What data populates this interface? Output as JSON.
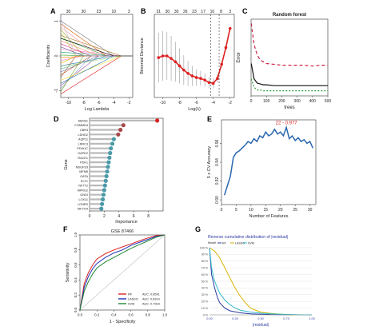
{
  "panel_letters": [
    "A",
    "B",
    "C",
    "D",
    "E",
    "F",
    "G"
  ],
  "chart_data": [
    {
      "panel": "A",
      "type": "line",
      "xlabel": "Log Lambda",
      "ylabel": "Coefficients",
      "xlim": [
        -11,
        -1.5
      ],
      "ylim": [
        -1.2,
        1.2
      ],
      "x_ticks": [
        "-10",
        "-8",
        "-6",
        "-4",
        "-2"
      ],
      "y_ticks": [
        "-1",
        "0",
        "1"
      ],
      "top_ticks": [
        "30",
        "30",
        "23",
        "10",
        "3"
      ],
      "x_ticks_values": [
        -10,
        -8,
        -6,
        -4,
        -2
      ],
      "y_ticks_values": [
        -1,
        0,
        1
      ],
      "num_paths": 30
    },
    {
      "panel": "B",
      "type": "line",
      "xlabel": "Log(λ)",
      "ylabel": "Binomial Deviance",
      "xlim": [
        -11,
        -1.5
      ],
      "ylim": [
        0.45,
        1.45
      ],
      "x_ticks": [
        "-10",
        "-8",
        "-6",
        "-4",
        "-2"
      ],
      "top_ticks": [
        "31",
        "30",
        "30",
        "26",
        "23",
        "17",
        "10",
        "8",
        "3"
      ],
      "x_ticks_values": [
        -10,
        -8,
        -6,
        -4,
        -2
      ],
      "vlines": [
        -4.3,
        -3.3
      ],
      "x": [
        -10.5,
        -10,
        -9.5,
        -9,
        -8.5,
        -8,
        -7.5,
        -7,
        -6.5,
        -6,
        -5.5,
        -5,
        -4.5,
        -4,
        -3.5,
        -3,
        -2.5,
        -2
      ],
      "y": [
        0.93,
        0.95,
        0.95,
        0.92,
        0.88,
        0.83,
        0.78,
        0.74,
        0.71,
        0.69,
        0.68,
        0.66,
        0.63,
        0.62,
        0.68,
        0.85,
        1.05,
        1.28
      ],
      "err": [
        0.3,
        0.3,
        0.29,
        0.27,
        0.24,
        0.21,
        0.18,
        0.15,
        0.12,
        0.1,
        0.09,
        0.08,
        0.07,
        0.06,
        0.05,
        0.04,
        0.03,
        0.02
      ]
    },
    {
      "panel": "C",
      "type": "line",
      "title": "Random forest",
      "xlabel": "trees",
      "ylabel": "Error",
      "xlim": [
        0,
        500
      ],
      "ylim": [
        0,
        0.9
      ],
      "x_ticks": [
        "0",
        "100",
        "200",
        "300",
        "400",
        "500"
      ],
      "x_ticks_values": [
        0,
        100,
        200,
        300,
        400,
        500
      ],
      "series": [
        {
          "x": [
            1,
            20,
            40,
            60,
            80,
            100,
            150,
            200,
            250,
            300,
            350,
            400,
            450,
            500
          ],
          "y": [
            0.85,
            0.6,
            0.48,
            0.42,
            0.4,
            0.38,
            0.37,
            0.36,
            0.36,
            0.36,
            0.36,
            0.35,
            0.36,
            0.36
          ],
          "color": "#cc2244",
          "dash": "4,3"
        },
        {
          "x": [
            1,
            20,
            40,
            60,
            80,
            100,
            150,
            200,
            250,
            300,
            350,
            400,
            450,
            500
          ],
          "y": [
            0.38,
            0.2,
            0.15,
            0.14,
            0.13,
            0.13,
            0.12,
            0.12,
            0.12,
            0.12,
            0.12,
            0.12,
            0.12,
            0.12
          ],
          "color": "#111111",
          "dash": ""
        },
        {
          "x": [
            1,
            20,
            40,
            60,
            80,
            100,
            150,
            200,
            250,
            300,
            350,
            400,
            450,
            500
          ],
          "y": [
            0.2,
            0.1,
            0.07,
            0.07,
            0.06,
            0.06,
            0.06,
            0.06,
            0.06,
            0.06,
            0.06,
            0.06,
            0.06,
            0.06
          ],
          "color": "#2e9e3c",
          "dash": "2,2"
        }
      ]
    },
    {
      "panel": "D",
      "type": "bar",
      "xlabel": "Importance",
      "ylabel": "Gene",
      "xlim": [
        0,
        10
      ],
      "x_ticks": [
        "0",
        "2",
        "4",
        "6",
        "8"
      ],
      "x_ticks_values": [
        0,
        2,
        4,
        6,
        8
      ],
      "categories": [
        "ABCB1",
        "COMMD4",
        "CBR3",
        "LDHD2",
        "AQP11",
        "LRRC3",
        "PDIA1C",
        "GAPD2",
        "RACE1",
        "PDK1",
        "NDUFS3",
        "MFNB",
        "GATA",
        "ELF1",
        "NFTT2",
        "MFRG2",
        "GNGI",
        "LOX11",
        "LONRS",
        "MFYG4"
      ],
      "values": [
        9.2,
        4.6,
        4.2,
        3.9,
        3.3,
        3.1,
        2.9,
        2.8,
        2.7,
        2.6,
        2.5,
        2.4,
        2.3,
        2.2,
        2.1,
        2.0,
        1.9,
        1.8,
        1.7,
        1.6
      ]
    },
    {
      "panel": "E",
      "type": "line",
      "xlabel": "Number of Features",
      "ylabel": "5 x CV Accuracy",
      "annotation": "22 - 0.977",
      "xlim": [
        0,
        32
      ],
      "ylim": [
        0.895,
        0.985
      ],
      "x_ticks": [
        "0",
        "5",
        "10",
        "15",
        "20",
        "25",
        "30"
      ],
      "y_ticks": [
        "0.90",
        "0.92",
        "0.94",
        "0.96"
      ],
      "x_ticks_values": [
        0,
        5,
        10,
        15,
        20,
        25,
        30
      ],
      "y_ticks_values": [
        0.9,
        0.92,
        0.94,
        0.96
      ],
      "x": [
        1,
        2,
        3,
        4,
        5,
        6,
        7,
        8,
        9,
        10,
        11,
        12,
        13,
        14,
        15,
        16,
        17,
        18,
        19,
        20,
        21,
        22,
        23,
        24,
        25,
        26,
        27,
        28,
        29,
        30,
        31
      ],
      "y": [
        0.905,
        0.915,
        0.925,
        0.945,
        0.95,
        0.952,
        0.955,
        0.958,
        0.962,
        0.96,
        0.965,
        0.962,
        0.968,
        0.966,
        0.972,
        0.968,
        0.97,
        0.975,
        0.97,
        0.972,
        0.968,
        0.977,
        0.965,
        0.968,
        0.963,
        0.966,
        0.962,
        0.964,
        0.96,
        0.962,
        0.955
      ]
    },
    {
      "panel": "F",
      "type": "line",
      "title": "GSE 87466",
      "xlabel": "1 - Specificity",
      "ylabel": "Sensitivity",
      "xlim": [
        0,
        1
      ],
      "ylim": [
        0,
        1
      ],
      "x_ticks": [
        "0.0",
        "0.2",
        "0.4",
        "0.6",
        "0.8",
        "1.0"
      ],
      "y_ticks": [
        "0.0",
        "0.2",
        "0.4",
        "0.6",
        "0.8",
        "1.0"
      ],
      "x_ticks_values": [
        0,
        0.2,
        0.4,
        0.6,
        0.8,
        1.0
      ],
      "y_ticks_values": [
        0,
        0.2,
        0.4,
        0.6,
        0.8,
        1.0
      ],
      "series": [
        {
          "name": "RF",
          "auc_label": "AUC: 0.8591",
          "color": "#dd2222",
          "x": [
            0,
            0.05,
            0.1,
            0.15,
            0.2,
            0.3,
            0.4,
            0.5,
            0.6,
            0.7,
            0.8,
            0.9,
            1.0
          ],
          "y": [
            0,
            0.35,
            0.5,
            0.6,
            0.68,
            0.75,
            0.8,
            0.84,
            0.88,
            0.92,
            0.96,
            0.99,
            1.0
          ]
        },
        {
          "name": "LASSO",
          "auc_label": "AUC: 0.8314",
          "color": "#2233bb",
          "x": [
            0,
            0.05,
            0.1,
            0.15,
            0.2,
            0.3,
            0.4,
            0.5,
            0.6,
            0.7,
            0.8,
            0.9,
            1.0
          ],
          "y": [
            0,
            0.3,
            0.45,
            0.55,
            0.62,
            0.7,
            0.76,
            0.8,
            0.86,
            0.9,
            0.94,
            0.98,
            1.0
          ]
        },
        {
          "name": "SVM",
          "auc_label": "AUC: 0.7903",
          "color": "#228833",
          "x": [
            0,
            0.05,
            0.1,
            0.15,
            0.2,
            0.3,
            0.4,
            0.5,
            0.6,
            0.7,
            0.8,
            0.9,
            1.0
          ],
          "y": [
            0,
            0.25,
            0.38,
            0.48,
            0.56,
            0.64,
            0.7,
            0.76,
            0.82,
            0.87,
            0.92,
            0.97,
            1.0
          ]
        }
      ]
    },
    {
      "panel": "G",
      "type": "line",
      "title": "Reverse cumulative distribution of |residual|",
      "xlabel": "|residual|",
      "legend_title": "Model",
      "xlim": [
        0,
        1
      ],
      "ylim": [
        0,
        100
      ],
      "x_ticks": [
        "0.00",
        "0.25",
        "0.50",
        "0.75",
        "1.00"
      ],
      "y_ticks": [
        "0 %",
        "10 %",
        "20 %",
        "30 %",
        "40 %",
        "50 %",
        "60 %",
        "70 %",
        "80 %",
        "90 %",
        "100 %"
      ],
      "x_ticks_values": [
        0,
        0.25,
        0.5,
        0.75,
        1.0
      ],
      "y_ticks_values": [
        0,
        10,
        20,
        30,
        40,
        50,
        60,
        70,
        80,
        90,
        100
      ],
      "series": [
        {
          "name": "RF",
          "color": "#2b3a9e",
          "x": [
            0,
            0.02,
            0.05,
            0.08,
            0.1,
            0.15,
            0.2,
            0.3,
            0.4,
            0.5,
            0.6,
            0.7,
            0.8,
            0.9,
            1.0
          ],
          "y": [
            100,
            60,
            40,
            25,
            18,
            10,
            6,
            3,
            1.5,
            1,
            0.5,
            0.3,
            0,
            0,
            0
          ]
        },
        {
          "name": "LASSO",
          "color": "#d9b200",
          "x": [
            0,
            0.05,
            0.1,
            0.15,
            0.2,
            0.25,
            0.3,
            0.35,
            0.4,
            0.5,
            0.6,
            0.7,
            0.8,
            0.9,
            1.0
          ],
          "y": [
            100,
            95,
            85,
            70,
            55,
            40,
            28,
            18,
            10,
            4,
            2,
            1,
            0,
            0,
            0
          ]
        },
        {
          "name": "SVM",
          "color": "#33bbcc",
          "x": [
            0,
            0.02,
            0.05,
            0.1,
            0.15,
            0.2,
            0.25,
            0.3,
            0.4,
            0.5,
            0.6,
            0.7,
            0.8,
            0.9,
            1.0
          ],
          "y": [
            100,
            70,
            50,
            32,
            22,
            15,
            10,
            7,
            4,
            2.5,
            1.5,
            1,
            0.5,
            0,
            0
          ]
        }
      ]
    }
  ]
}
